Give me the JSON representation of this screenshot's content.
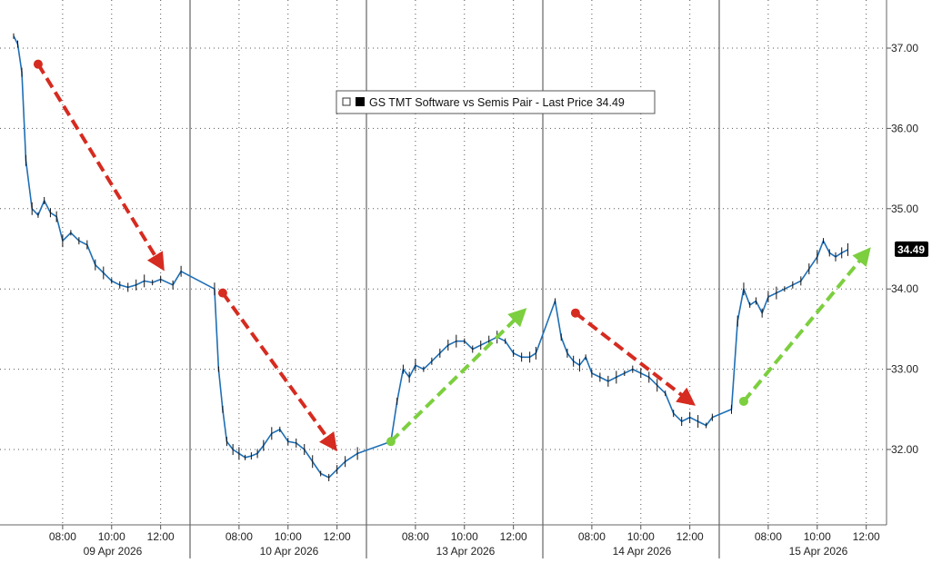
{
  "chart_data": {
    "type": "line",
    "title": "",
    "legend": {
      "text": "GS TMT Software vs Semis Pair - Last Price 34.49",
      "placement": "top-center"
    },
    "last_price_label": "34.49",
    "xlabel": "",
    "ylabel": "",
    "ylim": [
      31.0,
      37.6
    ],
    "yticks": [
      "32.00",
      "33.00",
      "34.00",
      "35.00",
      "36.00",
      "37.00"
    ],
    "y_axis_side": "right",
    "grid": true,
    "days": [
      {
        "label": "09 Apr 2026",
        "times": [
          "08:00",
          "10:00",
          "12:00"
        ]
      },
      {
        "label": "10 Apr 2026",
        "times": [
          "08:00",
          "10:00",
          "12:00"
        ]
      },
      {
        "label": "13 Apr 2026",
        "times": [
          "08:00",
          "10:00",
          "12:00"
        ]
      },
      {
        "label": "14 Apr 2026",
        "times": [
          "08:00",
          "10:00",
          "12:00"
        ]
      },
      {
        "label": "15 Apr 2026",
        "times": [
          "08:00",
          "10:00",
          "12:00"
        ]
      }
    ],
    "series": [
      {
        "color": "#1f6fb5",
        "x": [
          "09 Apr 06:00",
          "09 Apr 06:10",
          "09 Apr 06:20",
          "09 Apr 06:30",
          "09 Apr 06:45",
          "09 Apr 07:00",
          "09 Apr 07:15",
          "09 Apr 07:30",
          "09 Apr 07:45",
          "09 Apr 08:00",
          "09 Apr 08:20",
          "09 Apr 08:40",
          "09 Apr 09:00",
          "09 Apr 09:20",
          "09 Apr 09:40",
          "09 Apr 10:00",
          "09 Apr 10:20",
          "09 Apr 10:40",
          "09 Apr 11:00",
          "09 Apr 11:20",
          "09 Apr 11:40",
          "09 Apr 12:00",
          "09 Apr 12:30",
          "09 Apr 12:50",
          "10 Apr 07:00",
          "10 Apr 07:10",
          "10 Apr 07:20",
          "10 Apr 07:30",
          "10 Apr 07:45",
          "10 Apr 08:00",
          "10 Apr 08:15",
          "10 Apr 08:30",
          "10 Apr 08:45",
          "10 Apr 09:00",
          "10 Apr 09:20",
          "10 Apr 09:40",
          "10 Apr 10:00",
          "10 Apr 10:20",
          "10 Apr 10:40",
          "10 Apr 11:00",
          "10 Apr 11:20",
          "10 Apr 11:40",
          "10 Apr 12:00",
          "10 Apr 12:20",
          "10 Apr 12:50",
          "13 Apr 07:00",
          "13 Apr 07:15",
          "13 Apr 07:30",
          "13 Apr 07:45",
          "13 Apr 08:00",
          "13 Apr 08:20",
          "13 Apr 08:40",
          "13 Apr 09:00",
          "13 Apr 09:20",
          "13 Apr 09:40",
          "13 Apr 10:00",
          "13 Apr 10:20",
          "13 Apr 10:40",
          "13 Apr 11:00",
          "13 Apr 11:20",
          "13 Apr 11:40",
          "13 Apr 12:00",
          "13 Apr 12:20",
          "13 Apr 12:40",
          "13 Apr 12:55",
          "14 Apr 06:30",
          "14 Apr 06:45",
          "14 Apr 07:00",
          "14 Apr 07:15",
          "14 Apr 07:30",
          "14 Apr 07:45",
          "14 Apr 08:00",
          "14 Apr 08:20",
          "14 Apr 08:40",
          "14 Apr 09:00",
          "14 Apr 09:20",
          "14 Apr 09:40",
          "14 Apr 10:00",
          "14 Apr 10:20",
          "14 Apr 10:40",
          "14 Apr 11:00",
          "14 Apr 11:20",
          "14 Apr 11:40",
          "14 Apr 12:00",
          "14 Apr 12:20",
          "14 Apr 12:40",
          "14 Apr 12:55",
          "15 Apr 06:30",
          "15 Apr 06:45",
          "15 Apr 07:00",
          "15 Apr 07:15",
          "15 Apr 07:30",
          "15 Apr 07:45",
          "15 Apr 08:00",
          "15 Apr 08:20",
          "15 Apr 08:40",
          "15 Apr 09:00",
          "15 Apr 09:20",
          "15 Apr 09:40",
          "15 Apr 10:00",
          "15 Apr 10:15",
          "15 Apr 10:30",
          "15 Apr 10:45",
          "15 Apr 11:00",
          "15 Apr 11:15"
        ],
        "values": [
          37.15,
          37.05,
          36.7,
          35.6,
          35.0,
          34.92,
          35.1,
          34.95,
          34.9,
          34.6,
          34.7,
          34.6,
          34.55,
          34.3,
          34.2,
          34.1,
          34.05,
          34.02,
          34.05,
          34.1,
          34.08,
          34.12,
          34.05,
          34.22,
          34.0,
          33.0,
          32.5,
          32.1,
          32.0,
          31.95,
          31.9,
          31.92,
          31.95,
          32.05,
          32.2,
          32.25,
          32.1,
          32.08,
          32.0,
          31.85,
          31.7,
          31.65,
          31.75,
          31.85,
          31.95,
          32.1,
          32.6,
          33.0,
          32.9,
          33.05,
          33.0,
          33.1,
          33.2,
          33.3,
          33.35,
          33.35,
          33.25,
          33.3,
          33.35,
          33.4,
          33.35,
          33.2,
          33.15,
          33.15,
          33.2,
          33.85,
          33.4,
          33.2,
          33.1,
          33.05,
          33.15,
          32.95,
          32.9,
          32.85,
          32.9,
          32.95,
          33.0,
          32.95,
          32.9,
          32.8,
          32.7,
          32.45,
          32.35,
          32.4,
          32.35,
          32.3,
          32.4,
          32.5,
          33.6,
          34.0,
          33.8,
          33.85,
          33.7,
          33.9,
          33.95,
          34.0,
          34.05,
          34.1,
          34.25,
          34.4,
          34.6,
          34.45,
          34.4,
          34.45,
          34.49
        ]
      }
    ],
    "annotations": [
      {
        "type": "arrow",
        "color": "#d62b20",
        "from": [
          "09 Apr 07:00",
          36.8
        ],
        "to": [
          "09 Apr 12:00",
          34.3
        ]
      },
      {
        "type": "arrow",
        "color": "#d62b20",
        "from": [
          "10 Apr 07:20",
          33.95
        ],
        "to": [
          "10 Apr 11:50",
          32.05
        ]
      },
      {
        "type": "arrow",
        "color": "#7ccf3f",
        "from": [
          "13 Apr 07:00",
          32.1
        ],
        "to": [
          "13 Apr 12:20",
          33.7
        ]
      },
      {
        "type": "arrow",
        "color": "#d62b20",
        "from": [
          "14 Apr 07:20",
          33.7
        ],
        "to": [
          "14 Apr 12:00",
          32.6
        ]
      },
      {
        "type": "arrow",
        "color": "#7ccf3f",
        "from": [
          "15 Apr 07:00",
          32.6
        ],
        "to": [
          "15 Apr 12:00",
          34.45
        ]
      }
    ]
  }
}
